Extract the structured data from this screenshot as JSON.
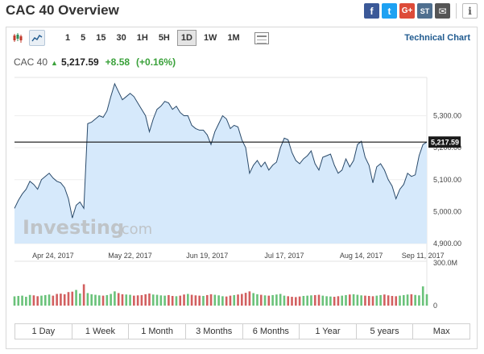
{
  "header": {
    "title": "CAC 40 Overview"
  },
  "share": {
    "facebook": "f",
    "twitter": "t",
    "googleplus": "G+",
    "stocktwits": "ST",
    "email": "✉",
    "info": "i"
  },
  "toolbar": {
    "resolutions": [
      "1",
      "5",
      "15",
      "30",
      "1H",
      "5H",
      "1D",
      "1W",
      "1M"
    ],
    "selected_resolution": "1D",
    "technical_chart": "Technical Chart"
  },
  "quote": {
    "name": "CAC 40",
    "price": "5,217.59",
    "change": "+8.58",
    "change_pct": "(+0.16%)"
  },
  "watermark": {
    "brand": "Investing",
    "suffix": ".com"
  },
  "ranges": [
    "1 Day",
    "1 Week",
    "1 Month",
    "3 Months",
    "6 Months",
    "1 Year",
    "5 years",
    "Max"
  ],
  "colors": {
    "line": "#2a4a6a",
    "area": "#d6e9fb",
    "up": "#6ac27a",
    "down": "#d26060",
    "accent": "#1f5a8f",
    "positive": "#3aa13a"
  },
  "chart_data": {
    "type": "area",
    "y_ticks": [
      "5,300.00",
      "5,200.00",
      "5,100.00",
      "5,000.00",
      "4,900.00"
    ],
    "y_tick_values": [
      5300,
      5200,
      5100,
      5000,
      4900
    ],
    "ylim": [
      4900,
      5420
    ],
    "x_ticks": [
      "Apr 24, 2017",
      "May 22, 2017",
      "Jun 19, 2017",
      "Jul 17, 2017",
      "Aug 14, 2017",
      "Sep 11, 2017"
    ],
    "x_tick_index": [
      10,
      30,
      50,
      70,
      90,
      106
    ],
    "current_value": 5217.59,
    "current_label": "5,217.59",
    "volume_axis": [
      "300.0M",
      "0"
    ],
    "volume_max": 300,
    "values": [
      5010,
      5035,
      5055,
      5070,
      5095,
      5085,
      5070,
      5100,
      5110,
      5120,
      5105,
      5095,
      5090,
      5075,
      5040,
      4980,
      5020,
      5030,
      5010,
      5275,
      5280,
      5290,
      5300,
      5295,
      5315,
      5360,
      5400,
      5375,
      5350,
      5360,
      5370,
      5360,
      5340,
      5320,
      5300,
      5250,
      5290,
      5320,
      5330,
      5345,
      5340,
      5320,
      5330,
      5310,
      5300,
      5300,
      5270,
      5260,
      5255,
      5255,
      5240,
      5210,
      5250,
      5275,
      5300,
      5290,
      5260,
      5270,
      5265,
      5225,
      5200,
      5120,
      5145,
      5160,
      5140,
      5155,
      5130,
      5145,
      5155,
      5200,
      5230,
      5225,
      5185,
      5160,
      5150,
      5165,
      5175,
      5190,
      5150,
      5130,
      5170,
      5175,
      5180,
      5145,
      5120,
      5130,
      5165,
      5140,
      5160,
      5210,
      5220,
      5170,
      5145,
      5090,
      5140,
      5150,
      5130,
      5100,
      5080,
      5040,
      5070,
      5085,
      5120,
      5110,
      5115,
      5175,
      5210,
      5217.59
    ],
    "volume": [
      65,
      68,
      70,
      62,
      75,
      72,
      66,
      70,
      74,
      78,
      70,
      82,
      84,
      80,
      95,
      98,
      110,
      85,
      150,
      88,
      80,
      76,
      72,
      70,
      74,
      82,
      100,
      88,
      80,
      78,
      76,
      70,
      72,
      74,
      80,
      85,
      78,
      76,
      72,
      70,
      74,
      68,
      66,
      70,
      78,
      82,
      76,
      72,
      70,
      68,
      74,
      80,
      76,
      72,
      66,
      64,
      70,
      74,
      78,
      82,
      90,
      100,
      88,
      80,
      76,
      72,
      70,
      74,
      78,
      82,
      70,
      66,
      62,
      60,
      64,
      68,
      70,
      72,
      74,
      76,
      70,
      66,
      64,
      62,
      66,
      70,
      74,
      78,
      80,
      76,
      72,
      70,
      68,
      66,
      70,
      74,
      78,
      72,
      68,
      66,
      70,
      74,
      78,
      80,
      75,
      72,
      135,
      80
    ]
  }
}
